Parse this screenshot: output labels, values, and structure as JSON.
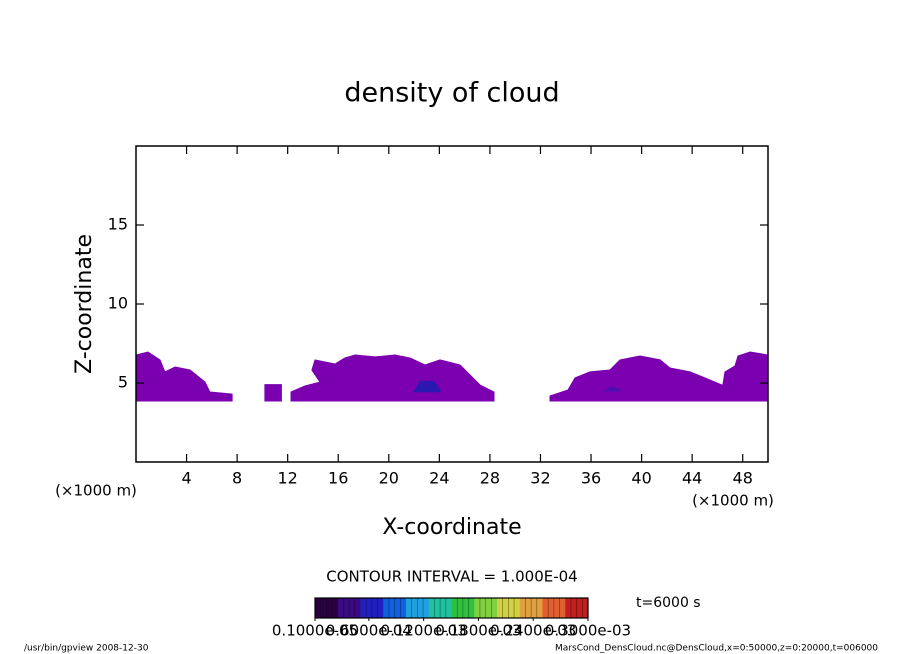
{
  "chart_data": {
    "type": "contour",
    "title": "density of cloud",
    "xlabel": "X-coordinate",
    "ylabel": "Z-coordinate",
    "xunit": "(×1000 m)",
    "yunit": "(×1000 m)",
    "xlim": [
      0,
      50
    ],
    "ylim": [
      0,
      20
    ],
    "xticks": [
      4,
      8,
      12,
      16,
      20,
      24,
      28,
      32,
      36,
      40,
      44,
      48
    ],
    "yticks": [
      5,
      10,
      15
    ],
    "regions": [
      {
        "color": "#7a00b0",
        "x": [
          0,
          7.6,
          7.6,
          5.85,
          5.46,
          4.27,
          3.09,
          2.29,
          1.9,
          0.95,
          0
        ],
        "z": [
          3.86,
          3.86,
          4.3,
          4.43,
          5.06,
          5.82,
          6.01,
          5.7,
          6.46,
          6.96,
          6.77
        ]
      },
      {
        "color": "#7a00b0",
        "x": [
          10.2,
          11.5,
          11.5,
          10.2
        ],
        "z": [
          3.86,
          3.86,
          4.9,
          4.9
        ]
      },
      {
        "color": "#7a00b0",
        "x": [
          12.26,
          28.32,
          28.32,
          27.22,
          26.42,
          25.63,
          24.05,
          22.86,
          21.68,
          20.49,
          18.91,
          17.33,
          16.53,
          15.74,
          14.16,
          13.92,
          14.56,
          13.37,
          12.26
        ],
        "z": [
          3.86,
          3.86,
          4.43,
          4.87,
          5.51,
          6.14,
          6.46,
          6.14,
          6.58,
          6.77,
          6.65,
          6.77,
          6.58,
          6.2,
          6.46,
          5.82,
          5.06,
          4.81,
          4.43
        ]
      },
      {
        "color": "#7a00b0",
        "x": [
          32.75,
          46.36,
          46.36,
          45.02,
          43.83,
          42.25,
          41.46,
          39.87,
          38.29,
          37.5,
          35.92,
          34.73,
          34.18,
          32.75
        ],
        "z": [
          3.86,
          3.86,
          4.87,
          5.32,
          5.7,
          5.95,
          6.46,
          6.71,
          6.46,
          5.82,
          5.7,
          5.32,
          4.56,
          4.18
        ]
      },
      {
        "color": "#7a00b0",
        "x": [
          44.6,
          50,
          50,
          48.58,
          47.63,
          47.39,
          46.6,
          46.36,
          44.6
        ],
        "z": [
          3.86,
          3.86,
          6.77,
          6.96,
          6.71,
          6.08,
          5.7,
          4.56,
          4.43
        ]
      },
      {
        "color": "#2a18b0",
        "x": [
          22,
          24.1,
          23.6,
          22.5
        ],
        "z": [
          4.45,
          4.45,
          5.1,
          5.1
        ]
      },
      {
        "color": "#4a10b0",
        "x": [
          37,
          38.4,
          37.7
        ],
        "z": [
          4.5,
          4.5,
          4.75
        ]
      }
    ],
    "annotation": "CONTOUR INTERVAL = 1.000E-04",
    "time_label": "t=6000 s",
    "colorbar": {
      "lim": [
        1e-06,
        0.0003
      ],
      "colors": [
        "#2a0040",
        "#3a0a80",
        "#2020c0",
        "#1060e0",
        "#20a0e0",
        "#20c0a0",
        "#30c040",
        "#80d040",
        "#d0d040",
        "#e0a040",
        "#e06030",
        "#c02020"
      ],
      "ticks": [
        {
          "value": 1e-06,
          "label": "0.1000e-05"
        },
        {
          "value": 6e-05,
          "label": "0.6000e-04"
        },
        {
          "value": 0.00012,
          "label": "0.1200e-03"
        },
        {
          "value": 0.00018,
          "label": "0.1800e-03"
        },
        {
          "value": 0.00024,
          "label": "0.2400e-03"
        },
        {
          "value": 0.0003,
          "label": "0.3000e-03"
        }
      ]
    },
    "footer_left": "/usr/bin/gpview   2008-12-30",
    "footer_right": "MarsCond_DensCloud.nc@DensCloud,x=0:50000,z=0:20000,t=006000"
  }
}
